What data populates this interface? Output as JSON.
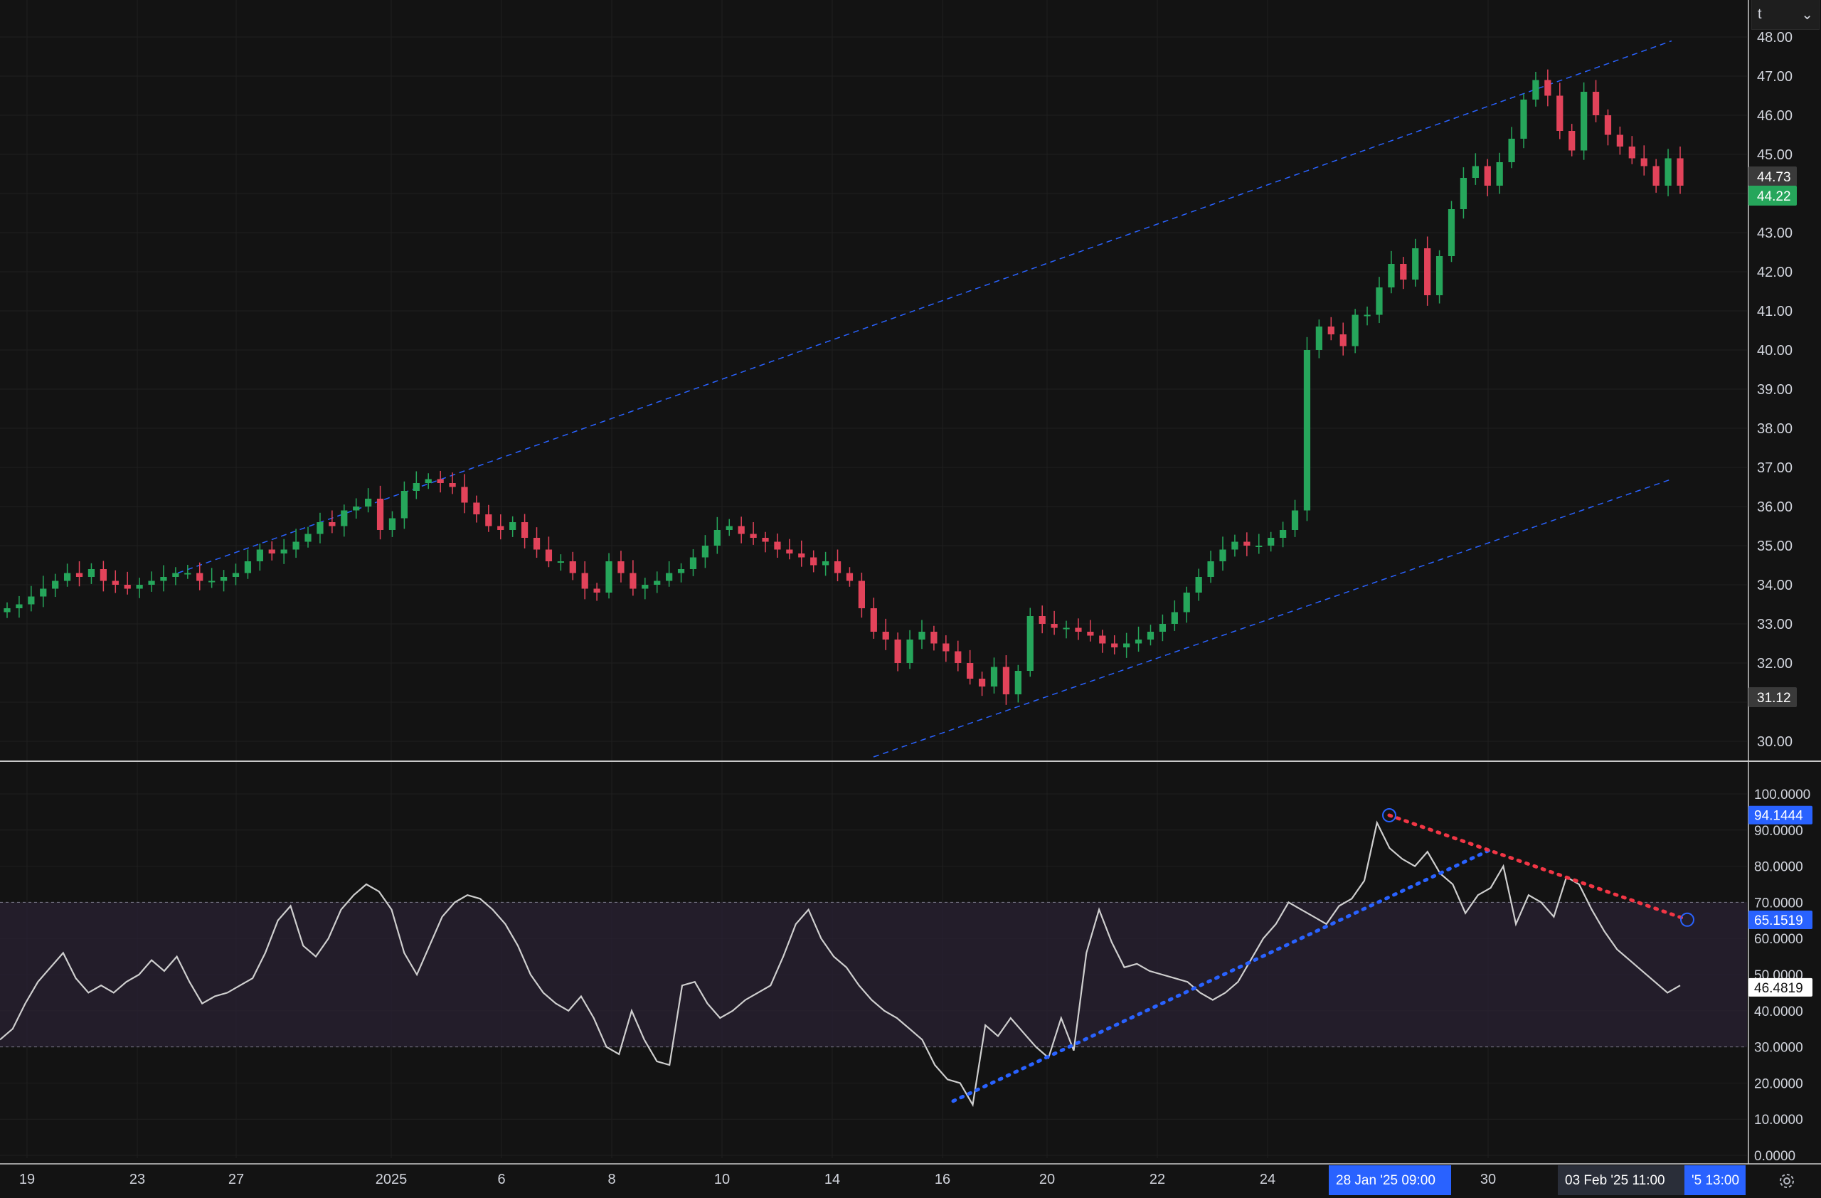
{
  "toolbar": {
    "symbol_fragment": "t",
    "dropdown_glyph": "⌄"
  },
  "colors": {
    "background": "#131313",
    "grid": "#1f1f1f",
    "up": "#26a65b",
    "down": "#e2435a",
    "channel": "#2962ff",
    "rsi_line": "#cfcfcf",
    "rsi_band": "#2a2233",
    "rsi_trend_up": "#2962ff",
    "rsi_trend_down": "#f23645",
    "axis_text": "#d1d4dc"
  },
  "icons": {
    "settings": "settings-gear-icon"
  },
  "chart_data": [
    {
      "type": "candlestick",
      "title": "",
      "y_range": [
        29.6,
        48.4
      ],
      "y_ticks": [
        "30.00",
        "31.00",
        "32.00",
        "33.00",
        "34.00",
        "35.00",
        "36.00",
        "37.00",
        "38.00",
        "39.00",
        "40.00",
        "41.00",
        "42.00",
        "43.00",
        "44.00",
        "45.00",
        "46.00",
        "47.00",
        "48.00"
      ],
      "price_labels": [
        {
          "value": "44.73",
          "kind": "neutral"
        },
        {
          "value": "44.22",
          "kind": "last"
        },
        {
          "value": "31.12",
          "kind": "neutral"
        }
      ],
      "candles_close": [
        33.4,
        33.5,
        33.7,
        33.9,
        34.1,
        34.3,
        34.2,
        34.4,
        34.1,
        34.0,
        33.9,
        34.0,
        34.1,
        34.2,
        34.3,
        34.3,
        34.1,
        34.1,
        34.2,
        34.3,
        34.6,
        34.9,
        34.8,
        34.9,
        35.1,
        35.3,
        35.6,
        35.5,
        35.9,
        36.0,
        36.2,
        35.4,
        35.7,
        36.4,
        36.6,
        36.7,
        36.6,
        36.5,
        36.1,
        35.8,
        35.5,
        35.4,
        35.6,
        35.2,
        34.9,
        34.6,
        34.6,
        34.3,
        33.9,
        33.8,
        34.6,
        34.3,
        33.9,
        34.0,
        34.1,
        34.3,
        34.4,
        34.7,
        35.0,
        35.4,
        35.5,
        35.3,
        35.2,
        35.1,
        34.9,
        34.8,
        34.7,
        34.5,
        34.6,
        34.3,
        34.1,
        33.4,
        32.8,
        32.6,
        32.0,
        32.6,
        32.8,
        32.5,
        32.3,
        32.0,
        31.6,
        31.4,
        31.9,
        31.2,
        31.8,
        33.2,
        33.0,
        32.9,
        32.9,
        32.8,
        32.7,
        32.5,
        32.4,
        32.5,
        32.6,
        32.8,
        33.0,
        33.3,
        33.8,
        34.2,
        34.6,
        34.9,
        35.1,
        35.0,
        35.0,
        35.2,
        35.4,
        35.9,
        40.0,
        40.6,
        40.4,
        40.1,
        40.9,
        40.9,
        41.6,
        42.2,
        41.8,
        42.6,
        41.4,
        42.4,
        43.6,
        44.4,
        44.7,
        44.2,
        44.8,
        45.4,
        46.4,
        46.9,
        46.5,
        45.6,
        45.1,
        46.6,
        46.0,
        45.5,
        45.2,
        44.9,
        44.7,
        44.2,
        44.9,
        44.2
      ],
      "x_ticks": [
        "19",
        "23",
        "27",
        "2025",
        "6",
        "8",
        "10",
        "14",
        "16",
        "20",
        "22",
        "24",
        "30"
      ],
      "x_highlight_labels": [
        {
          "date": "28 Jan '25",
          "time": "09:00"
        },
        {
          "date": "03 Feb '25",
          "time": "11:00"
        },
        {
          "date": "'5",
          "time": "13:00"
        }
      ],
      "channel_lines": [
        {
          "name": "upper",
          "from": [
            "start-of-series",
            34.3
          ],
          "to": [
            "end-of-series",
            47.9
          ]
        },
        {
          "name": "lower",
          "from": [
            "mid-series",
            29.6
          ],
          "to": [
            "end-of-series",
            36.8
          ]
        }
      ]
    },
    {
      "type": "line",
      "title": "",
      "y_range": [
        0,
        100
      ],
      "y_ticks": [
        "0.0000",
        "10.0000",
        "20.0000",
        "30.0000",
        "40.0000",
        "50.0000",
        "60.0000",
        "70.0000",
        "80.0000",
        "90.0000",
        "100.0000"
      ],
      "band": [
        30,
        70
      ],
      "value_labels": [
        {
          "value": "94.1444",
          "kind": "highlight"
        },
        {
          "value": "65.1519",
          "kind": "highlight"
        },
        {
          "value": "46.4819",
          "kind": "current"
        }
      ],
      "series": [
        {
          "values": [
            32,
            35,
            42,
            48,
            52,
            56,
            49,
            45,
            47,
            45,
            48,
            50,
            54,
            51,
            55,
            48,
            42,
            44,
            45,
            47,
            49,
            56,
            65,
            69,
            58,
            55,
            60,
            68,
            72,
            75,
            73,
            68,
            56,
            50,
            58,
            66,
            70,
            72,
            71,
            68,
            64,
            58,
            50,
            45,
            42,
            40,
            44,
            38,
            30,
            28,
            40,
            32,
            26,
            25,
            47,
            48,
            42,
            38,
            40,
            43,
            45,
            47,
            55,
            64,
            68,
            60,
            55,
            52,
            47,
            43,
            40,
            38,
            35,
            32,
            25,
            21,
            20,
            14,
            36,
            33,
            38,
            34,
            30,
            27,
            38,
            29,
            56,
            68,
            59,
            52,
            53,
            51,
            50,
            49,
            48,
            45,
            43,
            45,
            48,
            54,
            60,
            64,
            70,
            68,
            66,
            64,
            69,
            71,
            76,
            92,
            85,
            82,
            80,
            84,
            78,
            75,
            67,
            72,
            74,
            80,
            64,
            72,
            70,
            66,
            77,
            75,
            68,
            62,
            57,
            54,
            51,
            48,
            45,
            47
          ]
        },
        {
          "name": "",
          "values": []
        }
      ],
      "trend_lines": [
        {
          "name": "support",
          "points": [
            [
              15,
              "low"
            ],
            [
              71,
              "high"
            ]
          ]
        },
        {
          "name": "resistance",
          "points": [
            [
              94.1,
              "peak"
            ],
            [
              65.2,
              "end"
            ]
          ]
        }
      ]
    }
  ]
}
